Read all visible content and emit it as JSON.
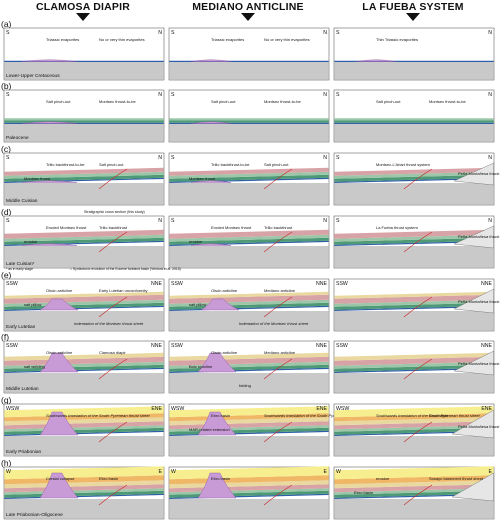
{
  "columns": [
    "CLAMOSA DIAPIR",
    "MEDIANO ANTICLINE",
    "LA FUEBA SYSTEM"
  ],
  "rows": [
    {
      "letter": "(a)",
      "stage": "Lower-Upper Cretaceous",
      "dirs": [
        "S",
        "N"
      ],
      "labels": [
        [
          "Triassic evaporites",
          "No or very thin evaporites"
        ],
        [
          "Triassic evaporites",
          "No or very thin evaporites"
        ],
        [
          "Thin Triassic evaporites"
        ]
      ]
    },
    {
      "letter": "(b)",
      "stage": "Paleocene",
      "dirs": [
        "S",
        "N"
      ],
      "labels": [
        [
          "Salt pinch-out",
          "Montsec thrust-to-be"
        ],
        [
          "Salt pinch-out",
          "Montsec thrust-to-be"
        ],
        [
          "Salt pinch-out",
          "Montsec thrust-to-be"
        ]
      ]
    },
    {
      "letter": "(c)",
      "stage": "Middle Cuisian",
      "dirs": [
        "S",
        "N"
      ],
      "labels": [
        [
          "Trillo backthrust-to-be",
          "Salt pinch-out",
          "Montsec thrust"
        ],
        [
          "Trillo backthrust-to-be",
          "Salt pinch-out",
          "Montsec thrust"
        ],
        [
          "Montsec-L'Ariart thrust system",
          "Peña Montañesa thrust system"
        ]
      ]
    },
    {
      "letter": "(d)",
      "stage": "Late Cuisian*",
      "dirs": [
        "S",
        "N"
      ],
      "note_top": "Stratigraphic cross section (this study)",
      "note_bottom": "* as in early stage",
      "note_bottom2": "= Syntectonic evolution of the Eocene foreland basin (Ventura et al. 2015)",
      "labels": [
        [
          "Eroded Montsec thrust",
          "Trillo backthrust",
          "erosion"
        ],
        [
          "Eroded Montsec thrust",
          "Trillo backthrust",
          "erosion"
        ],
        [
          "La Fueba thrust system",
          "Peña Montañesa thrust system"
        ]
      ]
    },
    {
      "letter": "(e)",
      "stage": "Early Lutetian",
      "dirs": [
        "SSW",
        "NNE"
      ],
      "labels": [
        [
          "Olsón anticline",
          "Early Lutetian unconformity",
          "salt pillow",
          "Indentation of the Montsec thrust sheet"
        ],
        [
          "Olsón anticline",
          "Mediano anticline",
          "salt pillow",
          "Indentation of the Montsec thrust sheet"
        ],
        [
          "Peña Montañesa thrust system"
        ]
      ]
    },
    {
      "letter": "(f)",
      "stage": "Middle Lutetian",
      "dirs": [
        "SSW",
        "NNE"
      ],
      "labels": [
        [
          "Olsón anticline",
          "Clamosa diapir",
          "salt welding"
        ],
        [
          "Olsón anticline",
          "Mediano anticline",
          "Boix syncline",
          "folding"
        ],
        [
          "Peña Montañesa thrust system"
        ]
      ]
    },
    {
      "letter": "(g)",
      "stage": "Early Priabonian",
      "dirs": [
        "WSW",
        "ENE"
      ],
      "labels": [
        [
          "Southwards translation of the South Pyrenean thrust sheet"
        ],
        [
          "Ebro basin",
          "Southwards translation of the South Pyrenean thrust sheet",
          "MAR-related extension"
        ],
        [
          "Southwards translation of the South Pyrenean thrust sheet",
          "Ebro basin",
          "Peña Montañesa thrust system"
        ]
      ]
    },
    {
      "letter": "(h)",
      "stage": "Late Priabonian-Oligocene",
      "dirs": [
        "W",
        "E"
      ],
      "labels": [
        [
          "Crestal collapse",
          "Ebro basin"
        ],
        [
          "Ebro basin"
        ],
        [
          "erosion",
          "Sosayo basement thrust sheet",
          "Ebro basin"
        ]
      ]
    }
  ],
  "colors": {
    "basement": "#c9c9c9",
    "evaporite": "#c99bd6",
    "evapEdge": "#8c56a3",
    "blue": "#2e5fa8",
    "green": "#4f9a76",
    "greenLight": "#9bc7a8",
    "pink": "#d8a3a6",
    "tan": "#e9d9a0",
    "orange": "#efb766",
    "yellow": "#f7ef8f",
    "thrust": "#c62828"
  }
}
